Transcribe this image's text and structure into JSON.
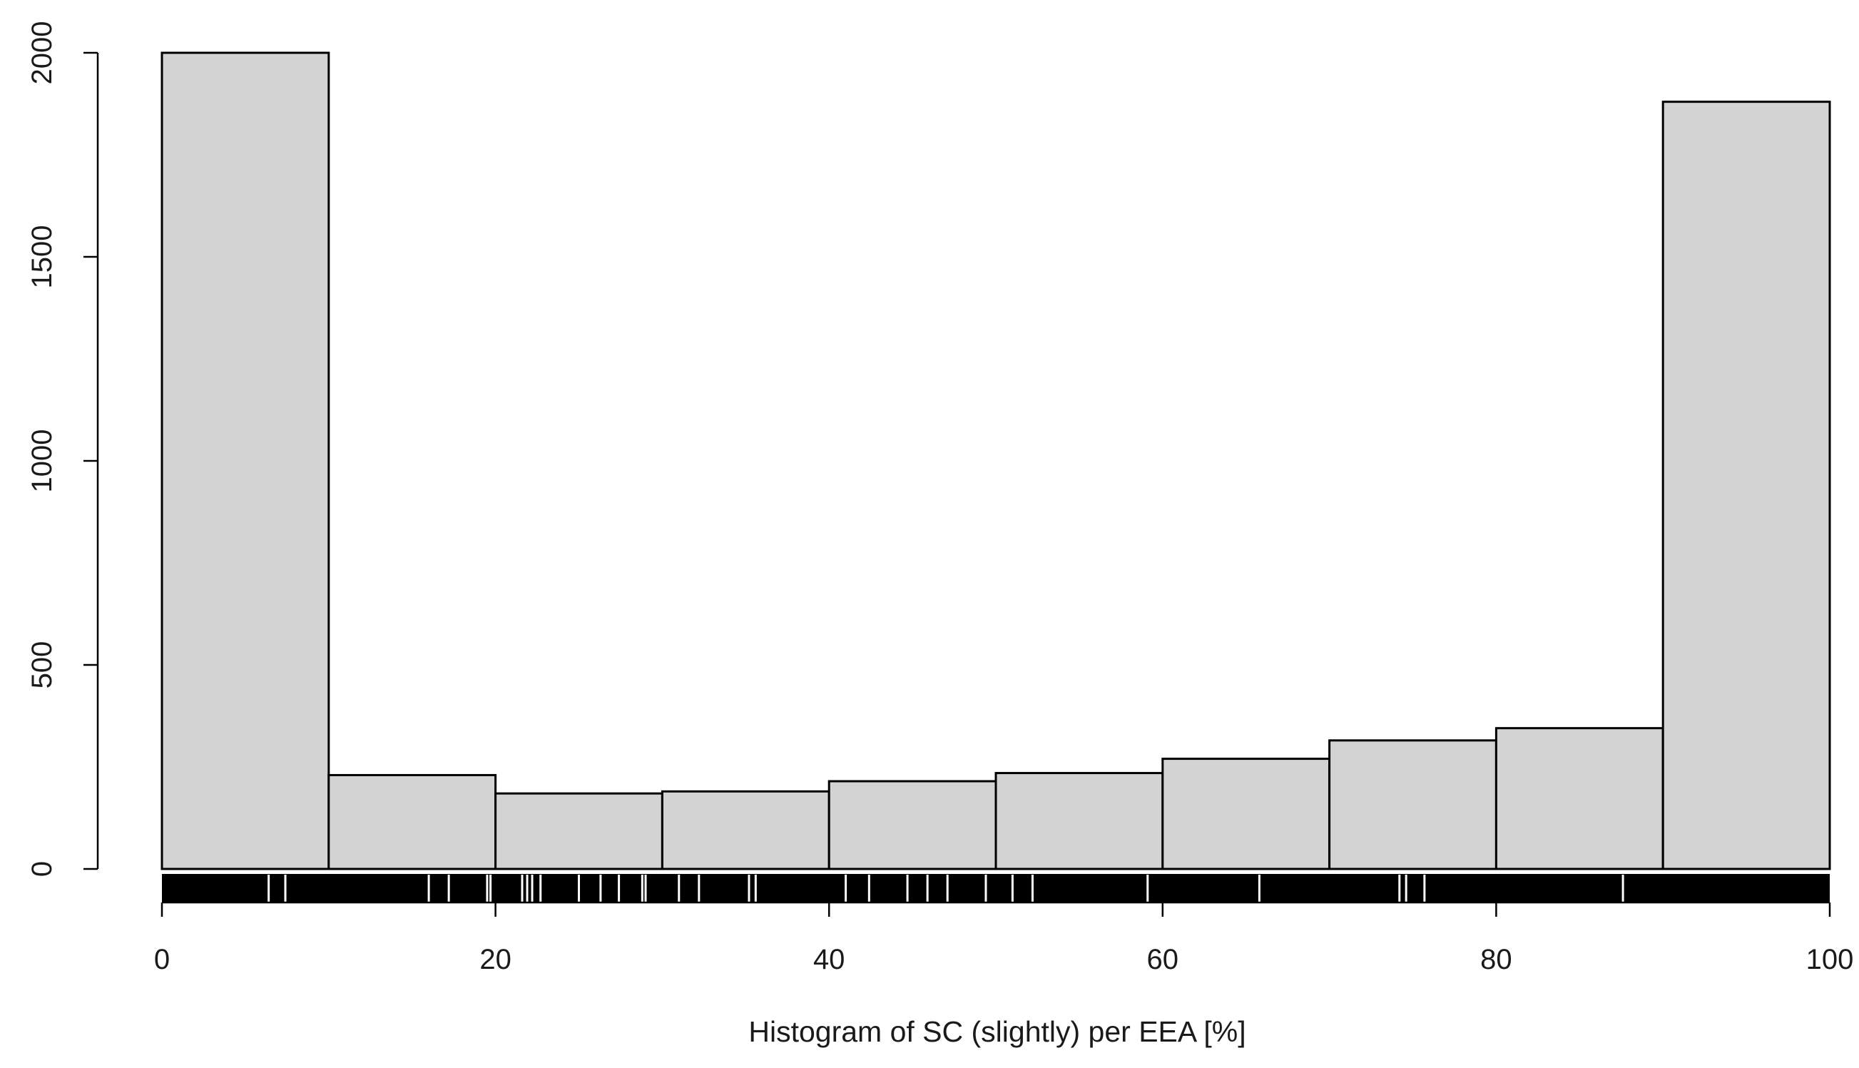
{
  "chart_data": {
    "type": "bar",
    "xlabel": "Histogram of SC (slightly) per EEA [%]",
    "ylabel": "",
    "bins": [
      [
        0,
        10
      ],
      [
        10,
        20
      ],
      [
        20,
        30
      ],
      [
        30,
        40
      ],
      [
        40,
        50
      ],
      [
        50,
        60
      ],
      [
        60,
        70
      ],
      [
        70,
        80
      ],
      [
        80,
        90
      ],
      [
        90,
        100
      ]
    ],
    "values": [
      2000,
      230,
      185,
      190,
      215,
      235,
      270,
      315,
      345,
      1880
    ],
    "xlim": [
      0,
      100
    ],
    "ylim": [
      0,
      2000
    ],
    "x_ticks": [
      0,
      20,
      40,
      60,
      80,
      100
    ],
    "y_ticks": [
      0,
      500,
      1000,
      1500,
      2000
    ],
    "grid": false,
    "bar_fill": "#d3d3d3",
    "bar_stroke": "#000000",
    "rug": {
      "color": "#000000",
      "gap_color": "#ffffff",
      "gaps": [
        6.4,
        7.4,
        16.0,
        17.2,
        19.5,
        19.7,
        21.6,
        21.9,
        22.2,
        22.7,
        25.0,
        26.3,
        27.4,
        28.8,
        29.0,
        31.0,
        32.2,
        35.2,
        35.6,
        41.0,
        42.4,
        44.7,
        45.9,
        47.1,
        49.4,
        51.0,
        52.2,
        59.1,
        65.8,
        74.2,
        74.6,
        75.7,
        87.6
      ]
    }
  }
}
